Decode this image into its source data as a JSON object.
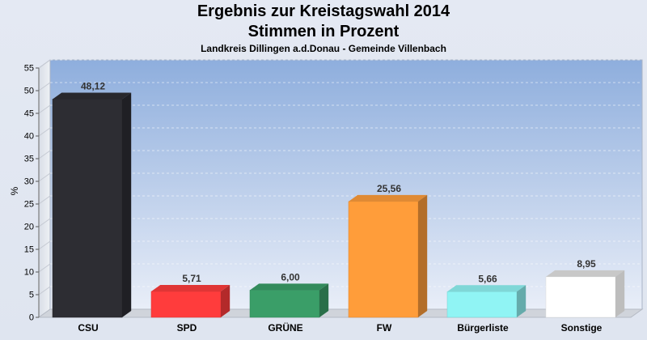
{
  "chart_data": {
    "type": "bar",
    "title": "Ergebnis zur Kreistagswahl 2014",
    "subtitle": "Stimmen in Prozent",
    "caption": "Landkreis Dillingen a.d.Donau - Gemeinde Villenbach",
    "ylabel": "%",
    "xlabel": "",
    "ylim": [
      0,
      55
    ],
    "yticks": [
      0,
      5,
      10,
      15,
      20,
      25,
      30,
      35,
      40,
      45,
      50,
      55
    ],
    "grid": true,
    "categories": [
      "CSU",
      "SPD",
      "GRÜNE",
      "FW",
      "Bürgerliste",
      "Sonstige"
    ],
    "values": [
      48.12,
      5.71,
      6.0,
      25.56,
      5.66,
      8.95
    ],
    "value_labels": [
      "48,12",
      "5,71",
      "6,00",
      "25,56",
      "5,66",
      "8,95"
    ],
    "colors": [
      "#2d2d33",
      "#ff3c3c",
      "#3a9e68",
      "#ff9d3a",
      "#90f4f4",
      "#ffffff"
    ]
  }
}
